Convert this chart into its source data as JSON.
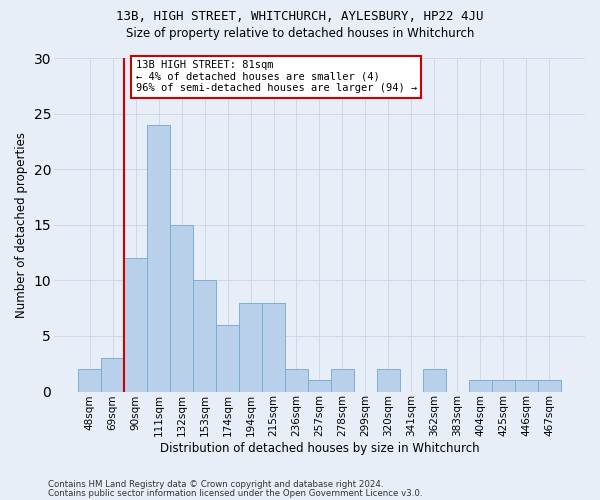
{
  "title1": "13B, HIGH STREET, WHITCHURCH, AYLESBURY, HP22 4JU",
  "title2": "Size of property relative to detached houses in Whitchurch",
  "xlabel": "Distribution of detached houses by size in Whitchurch",
  "ylabel": "Number of detached properties",
  "categories": [
    "48sqm",
    "69sqm",
    "90sqm",
    "111sqm",
    "132sqm",
    "153sqm",
    "174sqm",
    "194sqm",
    "215sqm",
    "236sqm",
    "257sqm",
    "278sqm",
    "299sqm",
    "320sqm",
    "341sqm",
    "362sqm",
    "383sqm",
    "404sqm",
    "425sqm",
    "446sqm",
    "467sqm"
  ],
  "values": [
    2,
    3,
    12,
    24,
    15,
    10,
    6,
    8,
    8,
    2,
    1,
    2,
    0,
    2,
    0,
    2,
    0,
    1,
    1,
    1,
    1
  ],
  "bar_color": "#b8d0ea",
  "bar_edge_color": "#7aafd4",
  "grid_color": "#d0d8e8",
  "bg_color": "#e8eef8",
  "annotation_box_color": "#ffffff",
  "annotation_border_color": "#cc0000",
  "vline_color": "#cc0000",
  "vline_x_idx": 1.5,
  "annotation_text_line1": "13B HIGH STREET: 81sqm",
  "annotation_text_line2": "← 4% of detached houses are smaller (4)",
  "annotation_text_line3": "96% of semi-detached houses are larger (94) →",
  "ylim": [
    0,
    30
  ],
  "yticks": [
    0,
    5,
    10,
    15,
    20,
    25,
    30
  ],
  "footer1": "Contains HM Land Registry data © Crown copyright and database right 2024.",
  "footer2": "Contains public sector information licensed under the Open Government Licence v3.0."
}
